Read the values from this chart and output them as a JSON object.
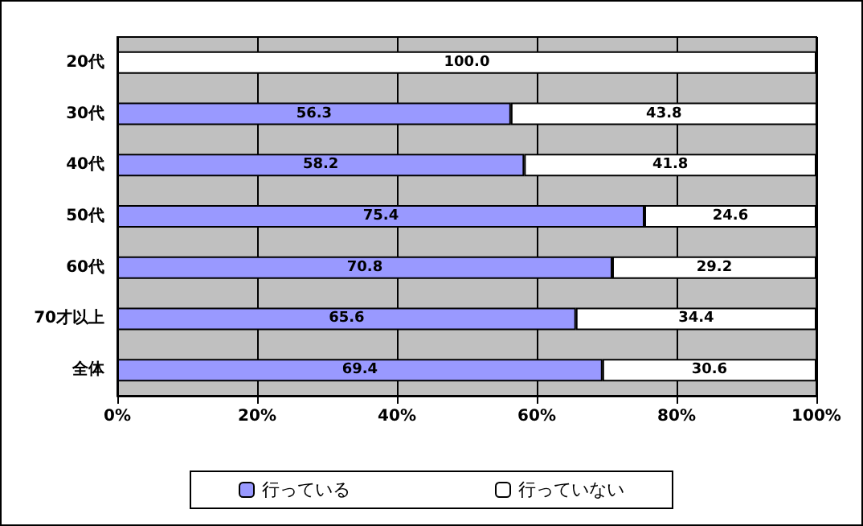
{
  "chart_data": {
    "type": "bar",
    "orientation": "horizontal",
    "stacked": true,
    "categories": [
      "20代",
      "30代",
      "40代",
      "50代",
      "60代",
      "70才以上",
      "全体"
    ],
    "series": [
      {
        "name": "行っている",
        "color": "#9999ff",
        "values": [
          0,
          56.3,
          58.2,
          75.4,
          70.8,
          65.6,
          69.4
        ],
        "value_labels": [
          null,
          "56.3",
          "58.2",
          "75.4",
          "70.8",
          "65.6",
          "69.4"
        ]
      },
      {
        "name": "行っていない",
        "color": "#ffffff",
        "values": [
          100.0,
          43.8,
          41.8,
          24.6,
          29.2,
          34.4,
          30.6
        ],
        "value_labels": [
          "100.0",
          "43.8",
          "41.8",
          "24.6",
          "29.2",
          "34.4",
          "30.6"
        ]
      }
    ],
    "xlim": [
      0,
      100
    ],
    "xticks": [
      {
        "value": 0,
        "label": "0%"
      },
      {
        "value": 20,
        "label": "20%"
      },
      {
        "value": 40,
        "label": "40%"
      },
      {
        "value": 60,
        "label": "60%"
      },
      {
        "value": 80,
        "label": "80%"
      },
      {
        "value": 100,
        "label": "100%"
      }
    ],
    "grid": "x",
    "legend": "bottom"
  }
}
